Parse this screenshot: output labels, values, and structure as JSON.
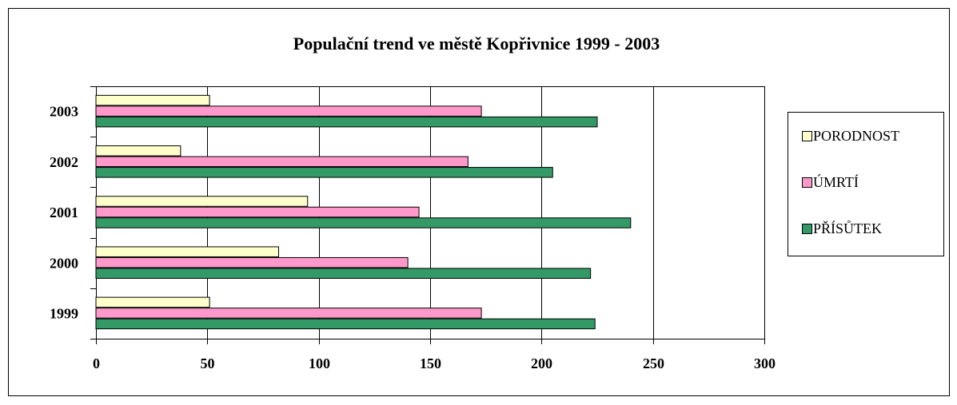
{
  "chart_data": {
    "type": "bar",
    "orientation": "horizontal",
    "title": "Populační trend ve městě Kopřivnice 1999 - 2003",
    "categories": [
      "1999",
      "2000",
      "2001",
      "2002",
      "2003"
    ],
    "series": [
      {
        "name": "PORODNOST",
        "color": "#ffffcc",
        "values": [
          51,
          82,
          95,
          38,
          51
        ]
      },
      {
        "name": "ÚMRTÍ",
        "color": "#ff99cc",
        "values": [
          173,
          140,
          145,
          167,
          173
        ]
      },
      {
        "name": "PŘÍSŮTEK",
        "color": "#339966",
        "values": [
          224,
          222,
          240,
          205,
          225
        ]
      }
    ],
    "xlim": [
      0,
      300
    ],
    "xticks": [
      0,
      50,
      100,
      150,
      200,
      250,
      300
    ],
    "grid": true,
    "legend": "right"
  }
}
